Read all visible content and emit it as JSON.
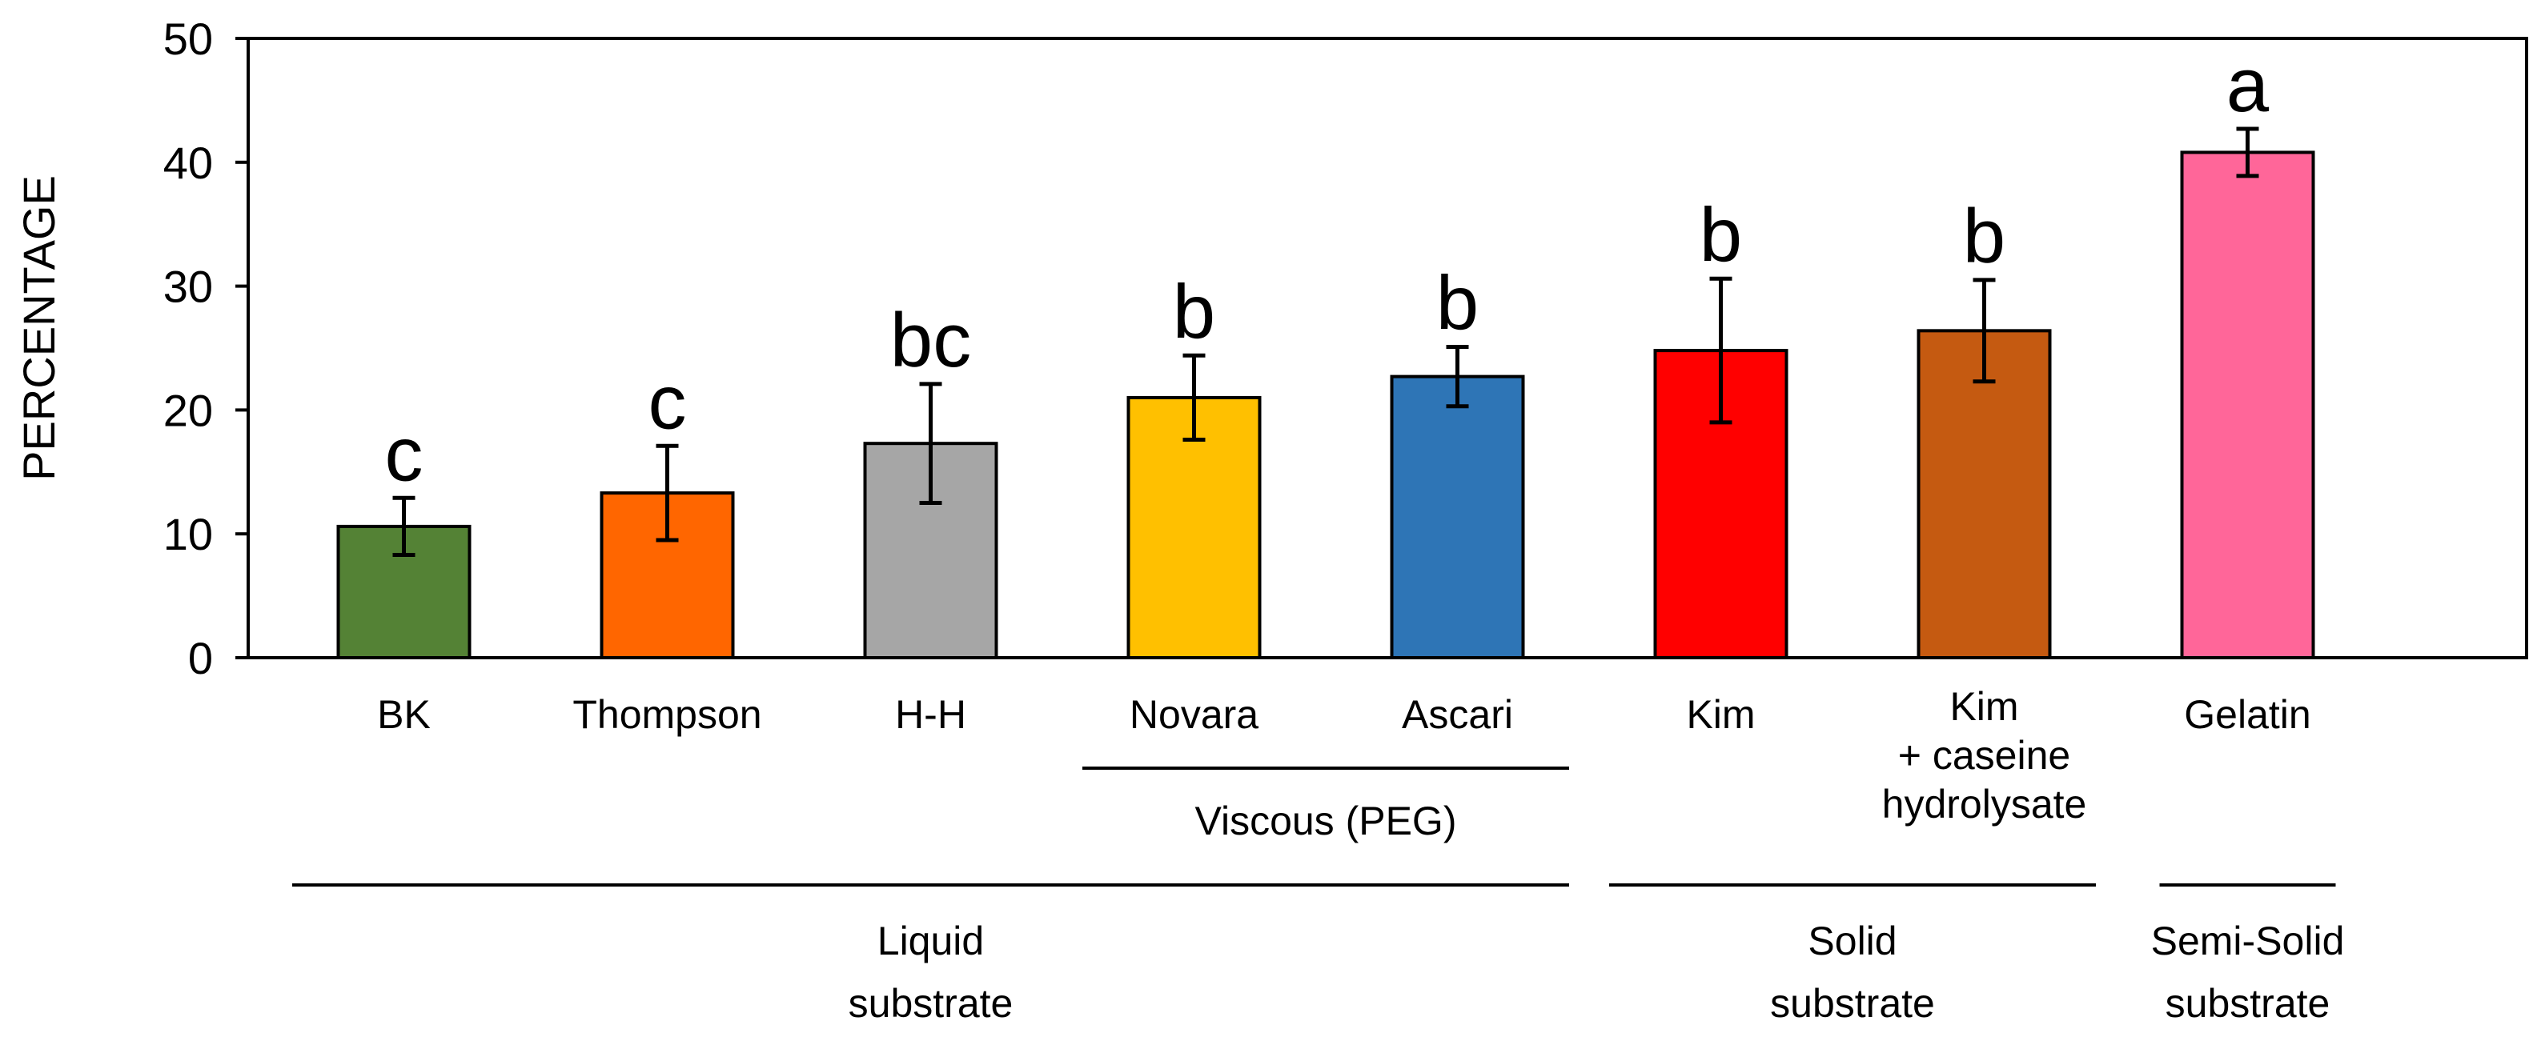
{
  "chart_data": {
    "type": "bar",
    "title": "",
    "xlabel": "",
    "ylabel": "PERCENTAGE",
    "ylim": [
      0,
      50
    ],
    "yticks": [
      0,
      10,
      20,
      30,
      40,
      50
    ],
    "grid": false,
    "categories": [
      [
        "BK"
      ],
      [
        "Thompson"
      ],
      [
        "H-H"
      ],
      [
        "Novara"
      ],
      [
        "Ascari"
      ],
      [
        "Kim"
      ],
      [
        "Kim",
        "+ caseine",
        "hydrolysate"
      ],
      [
        "Gelatin"
      ]
    ],
    "values": [
      10.6,
      13.3,
      17.3,
      21.0,
      22.7,
      24.8,
      26.4,
      40.8
    ],
    "errors": [
      2.3,
      3.8,
      4.8,
      3.4,
      2.4,
      5.8,
      4.1,
      1.9
    ],
    "significance": [
      "c",
      "c",
      "bc",
      "b",
      "b",
      "b",
      "b",
      "a"
    ],
    "colors": [
      "#548235",
      "#FF6600",
      "#A6A6A6",
      "#FFC000",
      "#2E75B6",
      "#FF0000",
      "#C55A11",
      "#FF6699"
    ],
    "groups": [
      {
        "label": [
          "Viscous (PEG)"
        ],
        "from": 3,
        "to": 4,
        "level": 1
      },
      {
        "label": [
          "Liquid",
          "substrate"
        ],
        "from": 0,
        "to": 4,
        "level": 2
      },
      {
        "label": [
          "Solid",
          "substrate"
        ],
        "from": 5,
        "to": 6,
        "level": 2
      },
      {
        "label": [
          "Semi-Solid",
          "substrate"
        ],
        "from": 7,
        "to": 7,
        "level": 2
      }
    ]
  }
}
